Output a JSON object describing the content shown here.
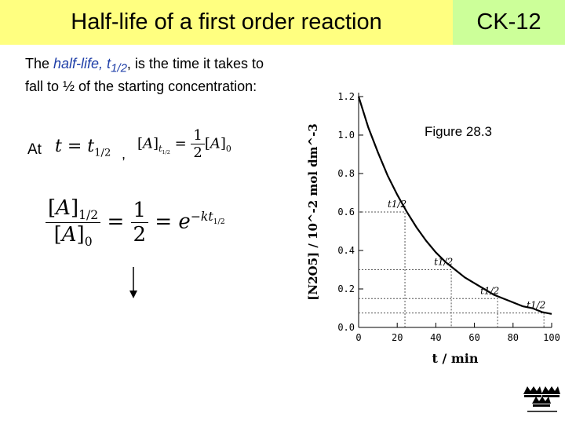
{
  "header": {
    "title": "Half-life of a first order reaction",
    "brand": "CK-12"
  },
  "intro": {
    "lead": "The ",
    "term": "half-life, t",
    "term_sub": "1/2",
    "rest": ", is the time it takes to fall to ½ of the starting concentration:"
  },
  "condition": {
    "at": "At",
    "comma": ","
  },
  "equations": {
    "t": "t",
    "eq": "=",
    "t_half": "t",
    "half_sub": "1/2",
    "a": "A",
    "zero_sub": "0",
    "num_one": "1",
    "den_two": "2",
    "e": "e",
    "exponent": "−kt",
    "minus": "−"
  },
  "figure_label": "Figure 28.3",
  "chart_data": {
    "type": "line",
    "title": "",
    "xlabel": "t / min",
    "ylabel": "[N2O5] / 10^-2 mol dm^-3",
    "xlim": [
      0,
      100
    ],
    "ylim": [
      0,
      1.2
    ],
    "x_ticks": [
      0,
      20,
      40,
      60,
      80,
      100
    ],
    "y_ticks": [
      0.0,
      0.2,
      0.4,
      0.6,
      0.8,
      1.0,
      1.2
    ],
    "y_tick_labels": [
      "0.0",
      "0.2",
      "0.4",
      "0.6",
      "0.8",
      "1.0",
      "1.2"
    ],
    "series": [
      {
        "x": [
          0,
          5,
          10,
          15,
          20,
          25,
          30,
          35,
          40,
          45,
          50,
          55,
          60,
          65,
          70,
          75,
          80,
          85,
          90,
          95,
          100
        ],
        "y": [
          1.2,
          1.04,
          0.91,
          0.79,
          0.69,
          0.6,
          0.52,
          0.45,
          0.39,
          0.34,
          0.3,
          0.26,
          0.23,
          0.2,
          0.17,
          0.15,
          0.13,
          0.11,
          0.1,
          0.08,
          0.07
        ]
      }
    ],
    "half_life_points": [
      {
        "x": 24,
        "y": 0.6,
        "label": "t1/2"
      },
      {
        "x": 48,
        "y": 0.3,
        "label": "t1/2"
      },
      {
        "x": 72,
        "y": 0.15,
        "label": "t1/2"
      },
      {
        "x": 96,
        "y": 0.075,
        "label": "t1/2"
      }
    ]
  }
}
